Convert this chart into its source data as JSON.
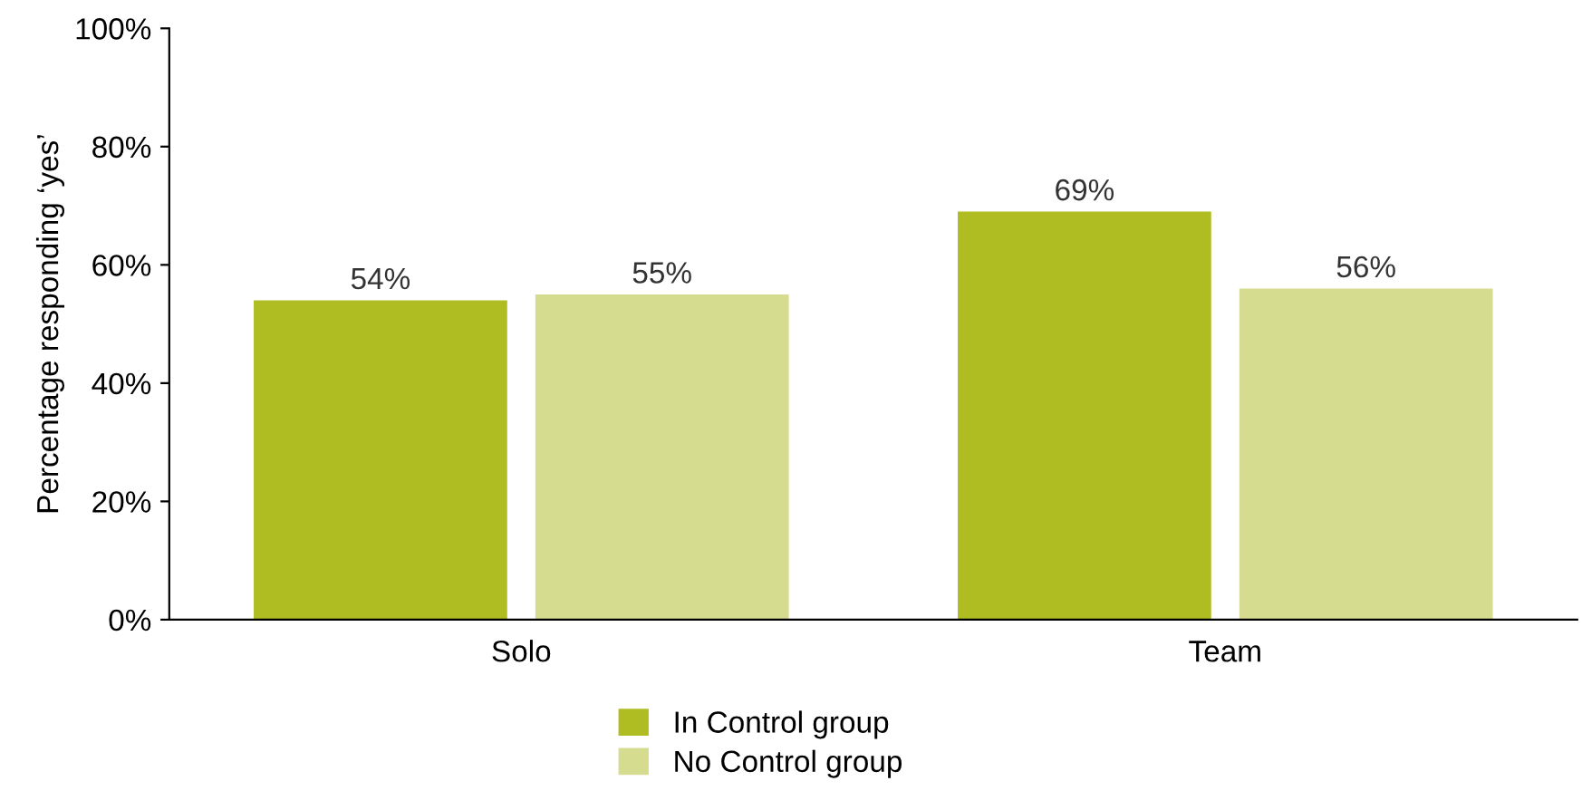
{
  "chart_data": {
    "type": "bar",
    "ylabel": "Percentage responding ‘yes’",
    "categories": [
      "Solo",
      "Team"
    ],
    "series": [
      {
        "name": "In Control group",
        "color": "#afbd22",
        "values": [
          54,
          69
        ],
        "value_labels": [
          "54%",
          "69%"
        ]
      },
      {
        "name": "No Control group",
        "color": "#d5db8f",
        "values": [
          55,
          56
        ],
        "value_labels": [
          "55%",
          "56%"
        ]
      }
    ],
    "ylim": [
      0,
      100
    ],
    "yticks": [
      {
        "value": 0,
        "label": "0%"
      },
      {
        "value": 20,
        "label": "20%"
      },
      {
        "value": 40,
        "label": "40%"
      },
      {
        "value": 60,
        "label": "60%"
      },
      {
        "value": 80,
        "label": "80%"
      },
      {
        "value": 100,
        "label": "100%"
      }
    ],
    "legend": "bottom",
    "grid": false
  }
}
